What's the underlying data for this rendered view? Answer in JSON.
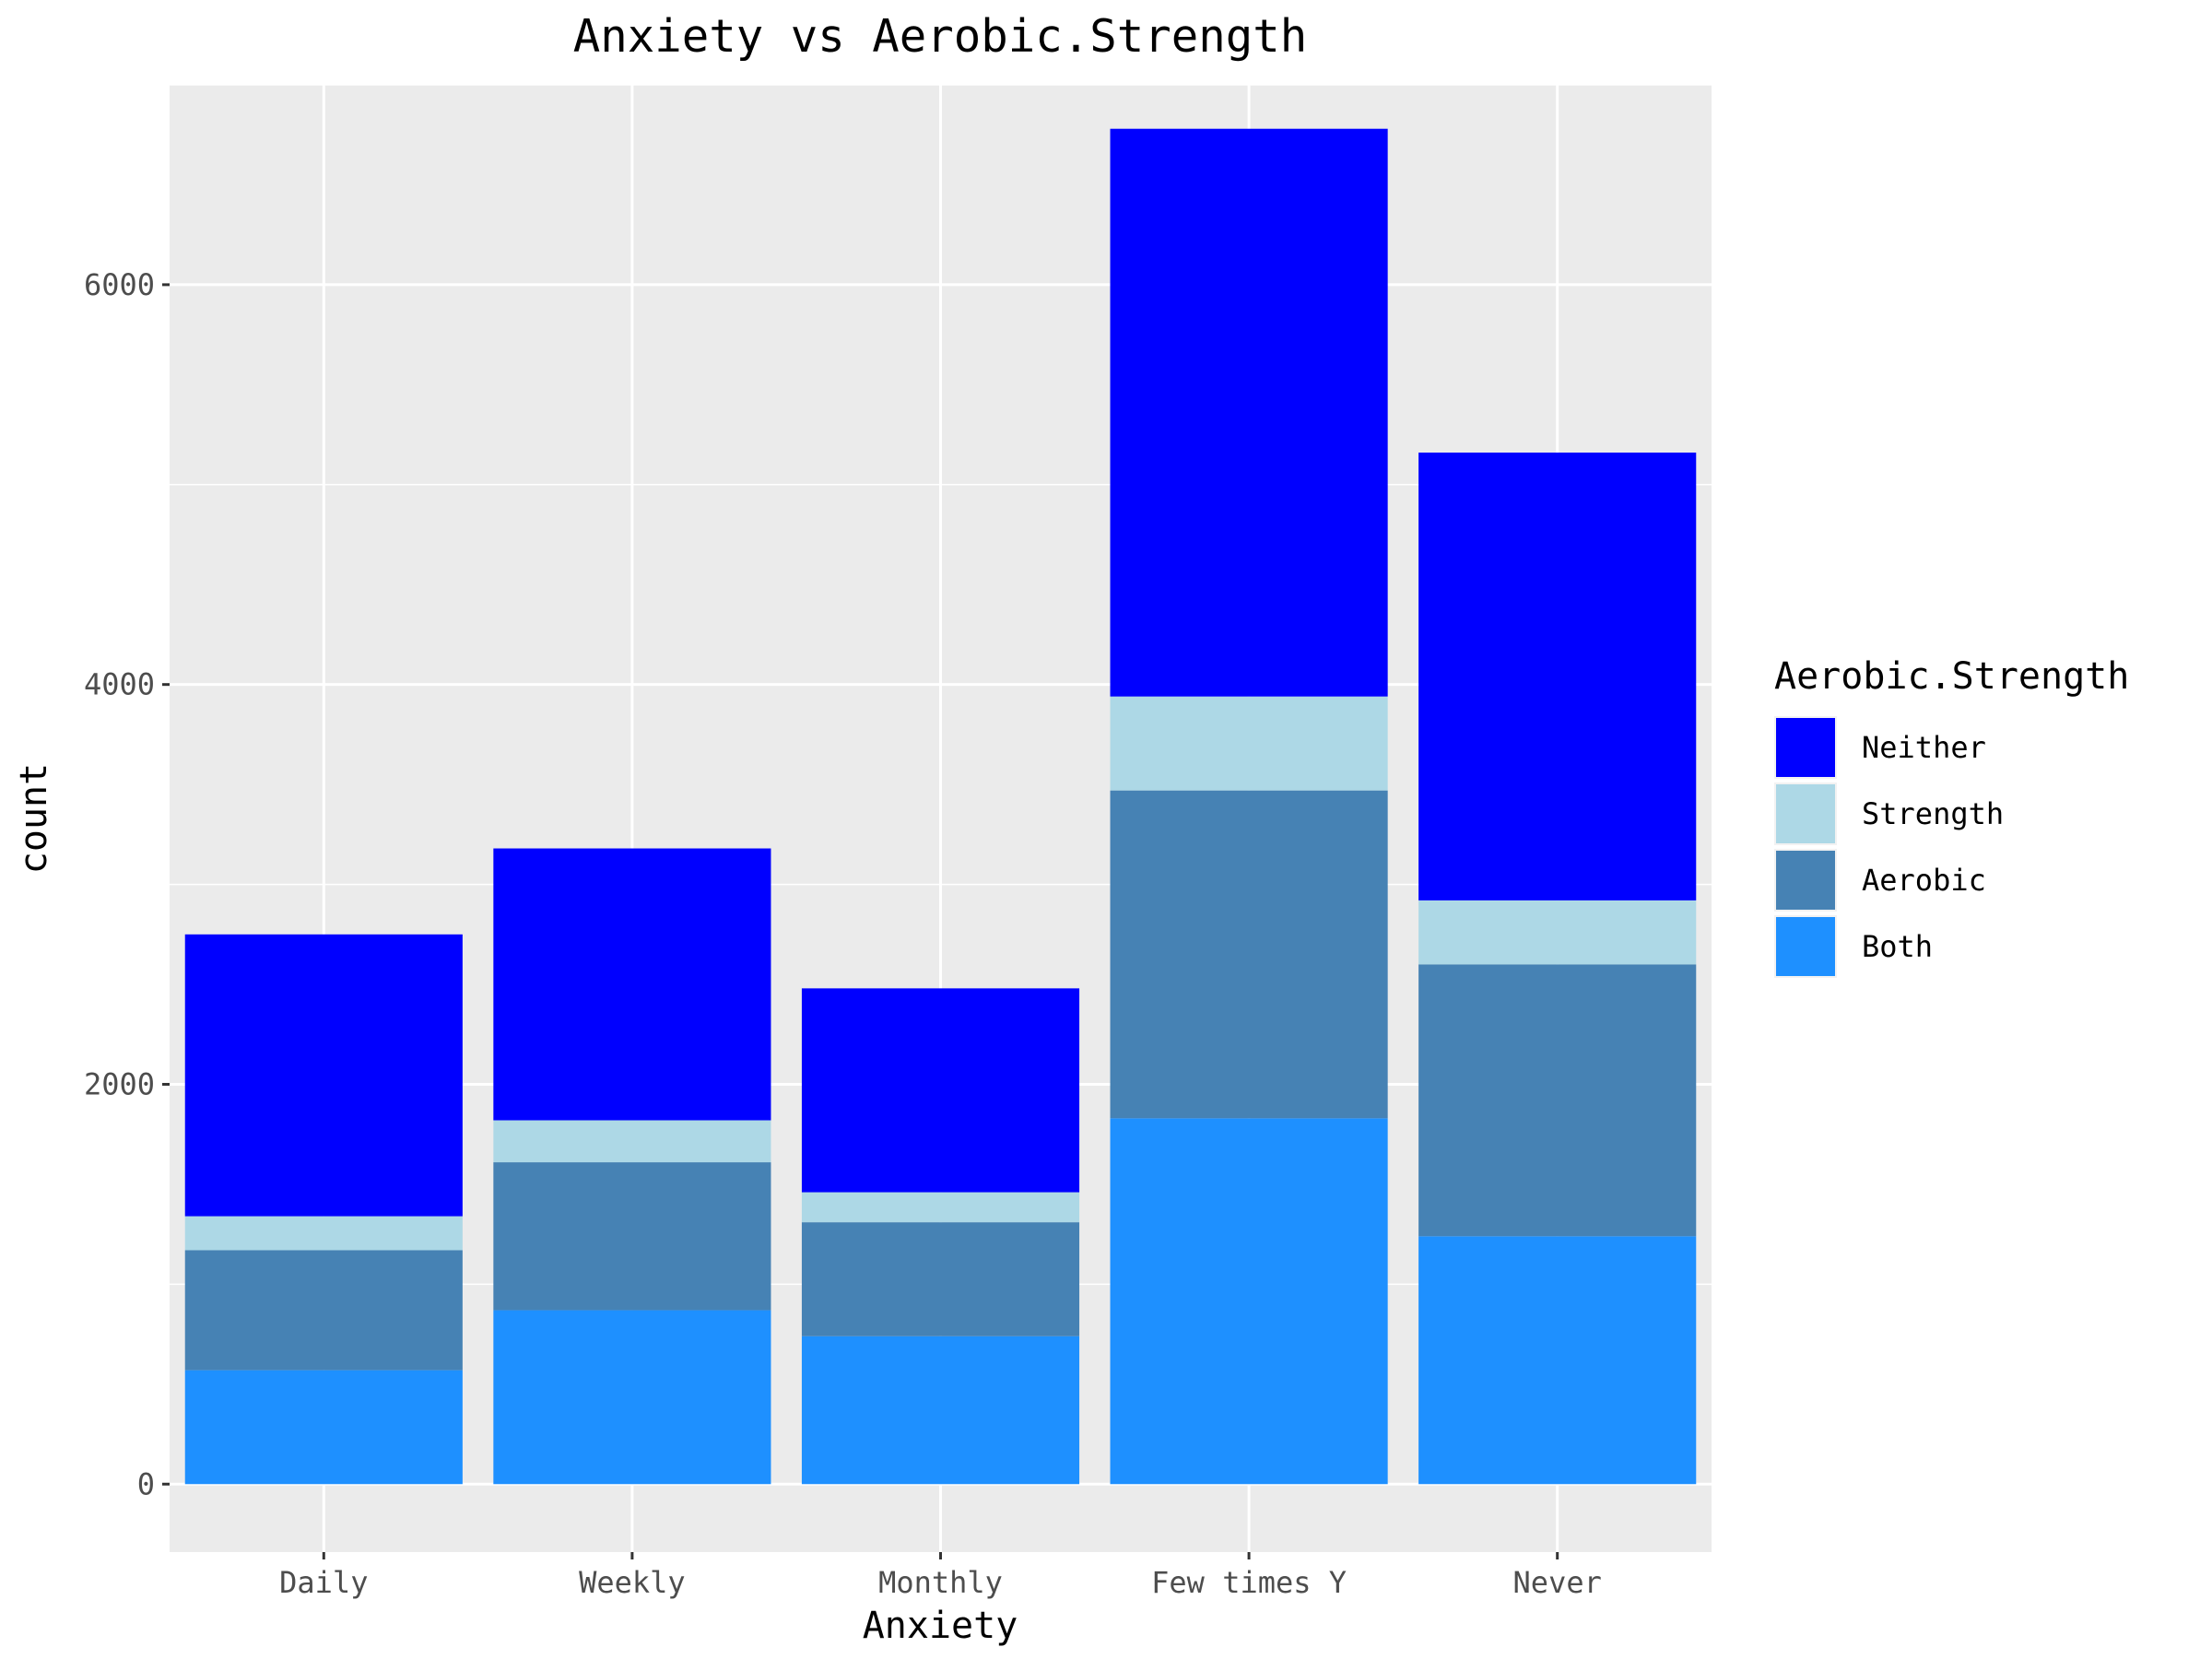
{
  "chart_data": {
    "type": "bar",
    "stacked": true,
    "title": "Anxiety vs Aerobic.Strength",
    "xlabel": "Anxiety",
    "ylabel": "count",
    "ylim": [
      -340,
      7000
    ],
    "yticks": [
      0,
      2000,
      4000,
      6000
    ],
    "grid": true,
    "legend_position": "right",
    "legend_title": "Aerobic.Strength",
    "categories": [
      "Daily",
      "Weekly",
      "Monthly",
      "Few times Y",
      "Never"
    ],
    "series": [
      {
        "name": "Both",
        "color": "#1E90FF",
        "values": [
          570,
          870,
          740,
          1830,
          1240
        ]
      },
      {
        "name": "Aerobic",
        "color": "#4682B4",
        "values": [
          600,
          740,
          570,
          1640,
          1360
        ]
      },
      {
        "name": "Strength",
        "color": "#ADD8E6",
        "values": [
          170,
          210,
          150,
          470,
          320
        ]
      },
      {
        "name": "Neither",
        "color": "#0000FF",
        "values": [
          1410,
          1360,
          1020,
          2840,
          2240
        ]
      }
    ],
    "legend_order": [
      "Neither",
      "Strength",
      "Aerobic",
      "Both"
    ]
  }
}
